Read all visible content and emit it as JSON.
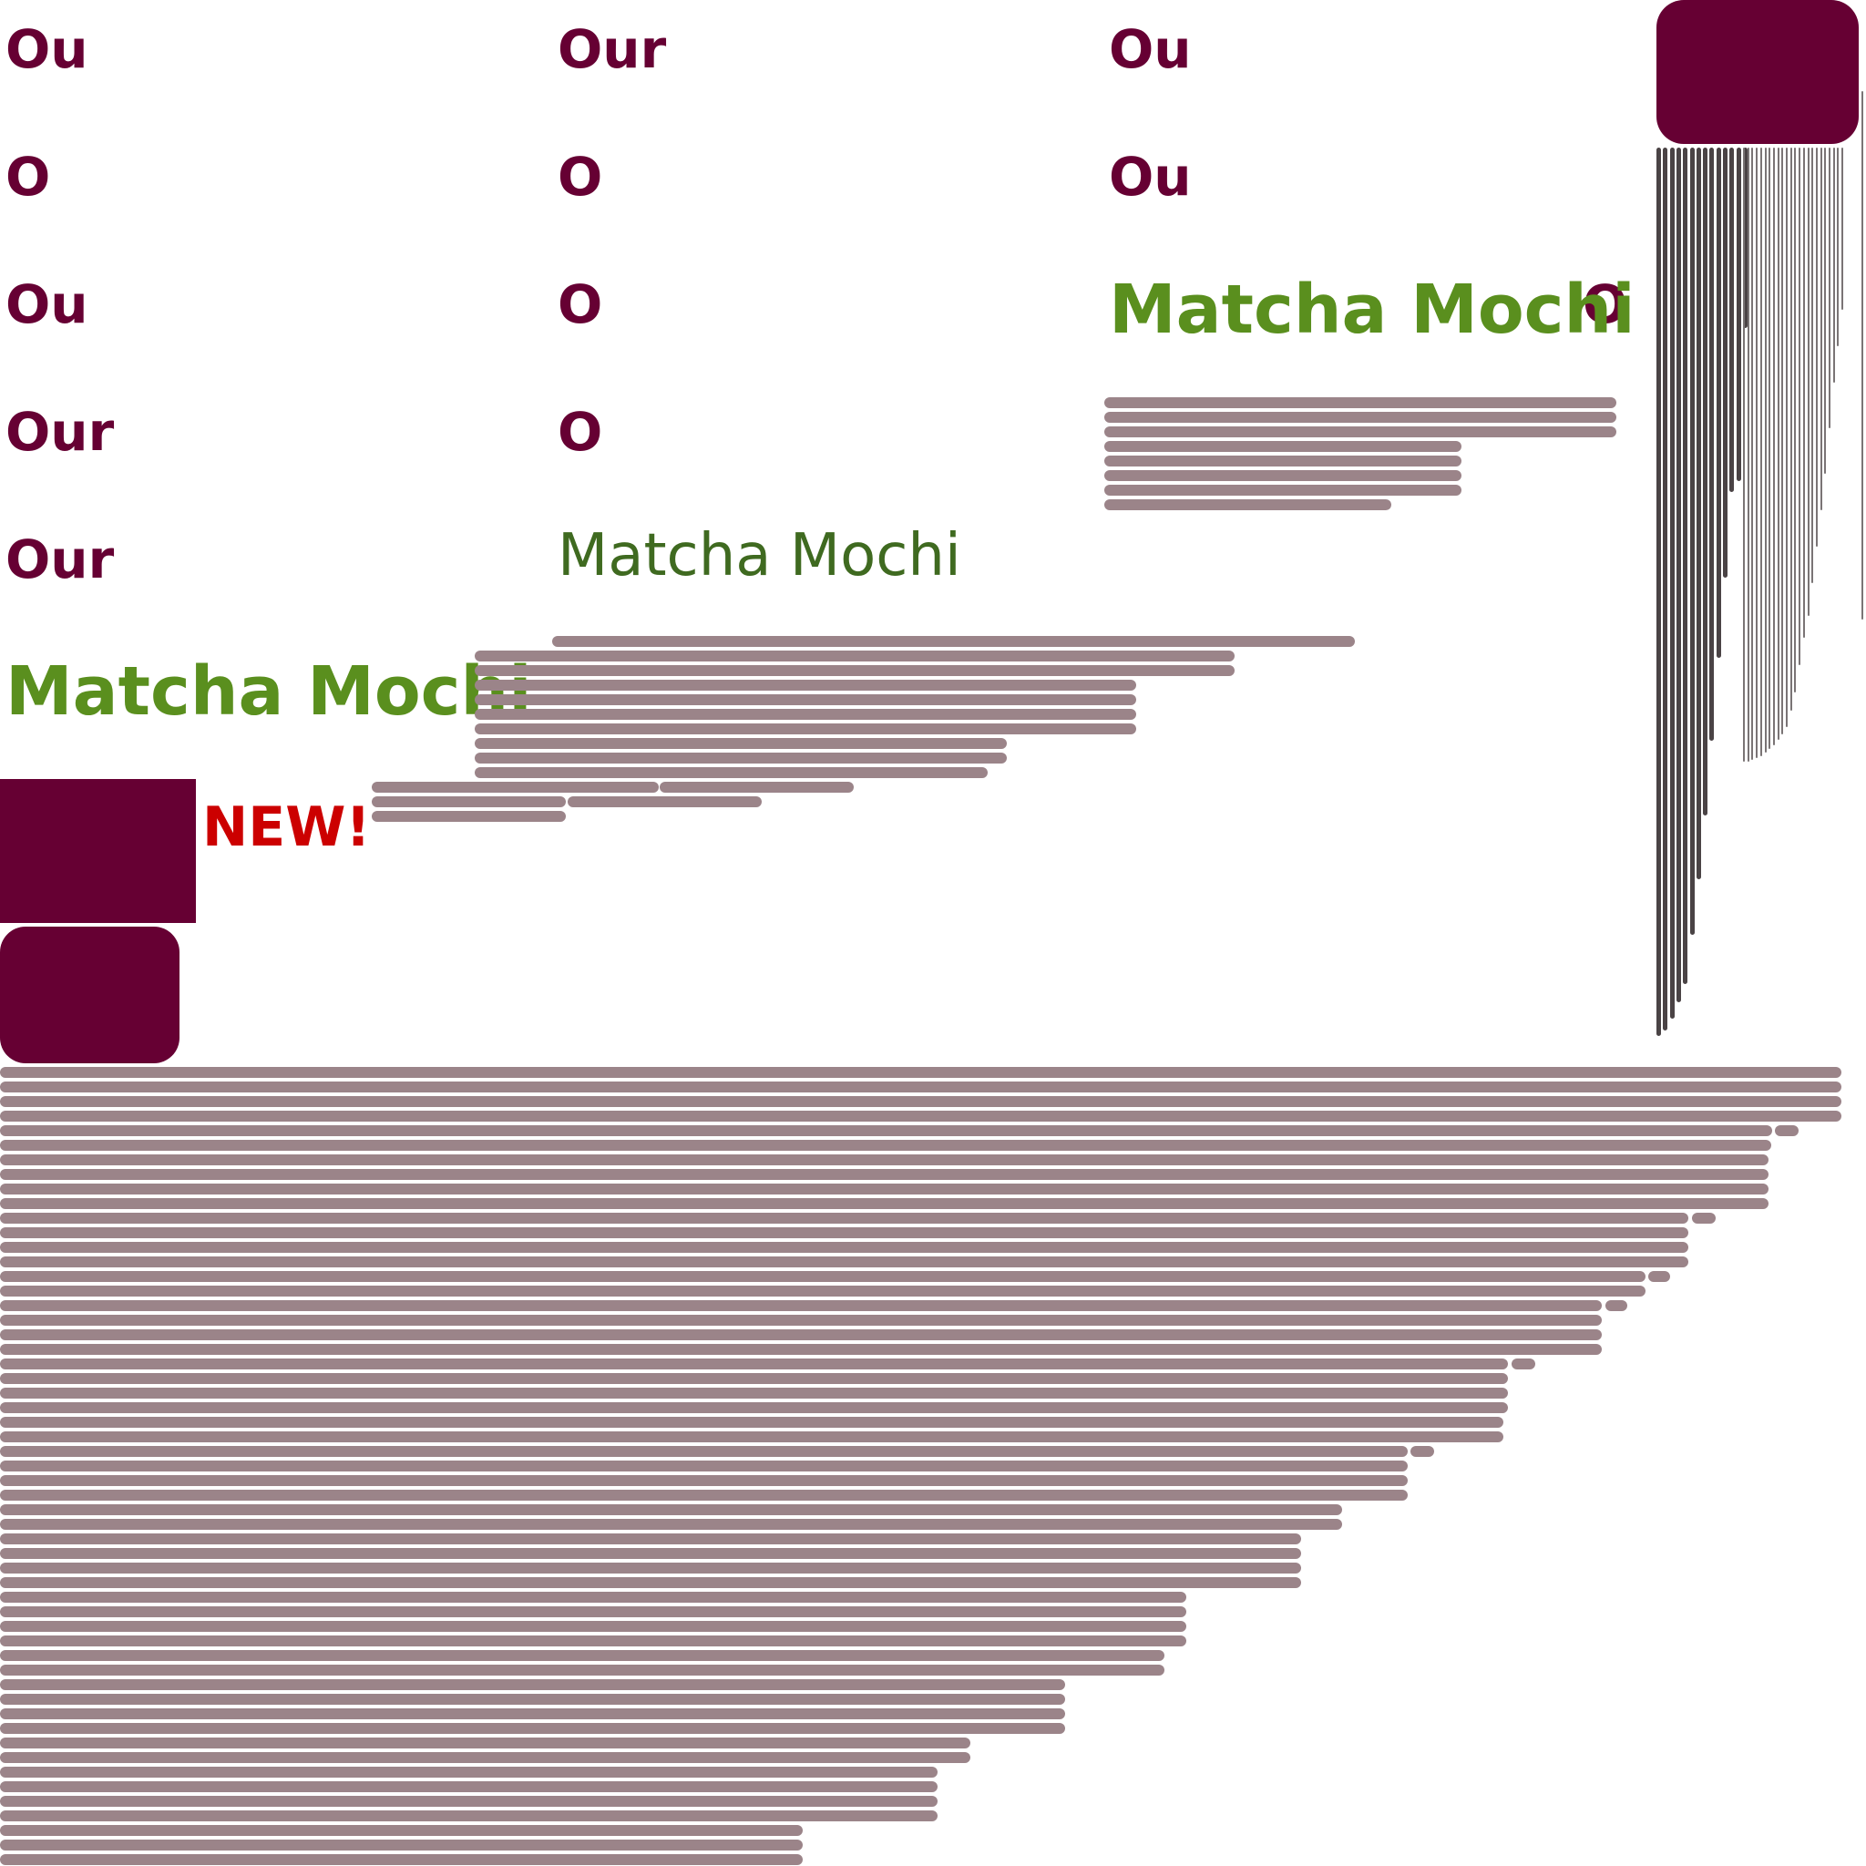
{
  "colors": {
    "maroon": "#660033",
    "green": "#5a8f1e",
    "green_dark": "#3f6a20",
    "red": "#cc0000",
    "bar": "#9b8489",
    "vbar_dark": "#4a4345",
    "vbar_light": "#7a7475"
  },
  "watermark_texts": {
    "col1": [
      "Ou",
      "O",
      "Ou",
      "Our",
      "Our"
    ],
    "col2": [
      "Our",
      "O",
      "O",
      "O"
    ],
    "col3": [
      "Ou",
      "Ou"
    ],
    "col3_extra": "O"
  },
  "headings": {
    "left": "Matcha Mochi",
    "middle": "Matcha Mochi",
    "right": "Matcha Mochi"
  },
  "badge": {
    "label": "NEW!"
  }
}
